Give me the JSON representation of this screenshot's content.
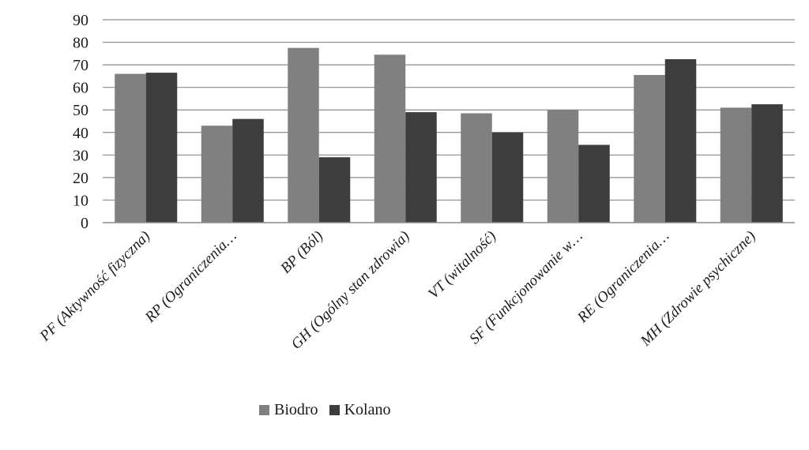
{
  "chart_data": {
    "type": "bar",
    "categories": [
      "PF (Aktywność fizyczna)",
      "RP (Ograniczenia…",
      "BP (Ból)",
      "GH (Ogólny stan zdrowia)",
      "VT (witalność)",
      "SF (Funkcjonowanie w…",
      "RE (Ograniczenia…",
      "MH (Zdrowie psychiczne)"
    ],
    "series": [
      {
        "name": "Biodro",
        "color": "#808080",
        "values": [
          66,
          43,
          77.5,
          74.5,
          48.5,
          50,
          65.5,
          51
        ]
      },
      {
        "name": "Kolano",
        "color": "#3d3d3d",
        "values": [
          66.5,
          46,
          29,
          49,
          40,
          34.5,
          72.5,
          52.5
        ]
      }
    ],
    "yticks": [
      0,
      10,
      20,
      30,
      40,
      50,
      60,
      70,
      80,
      90
    ],
    "ylim": [
      0,
      90
    ],
    "grid": true,
    "legend_position": "bottom"
  }
}
